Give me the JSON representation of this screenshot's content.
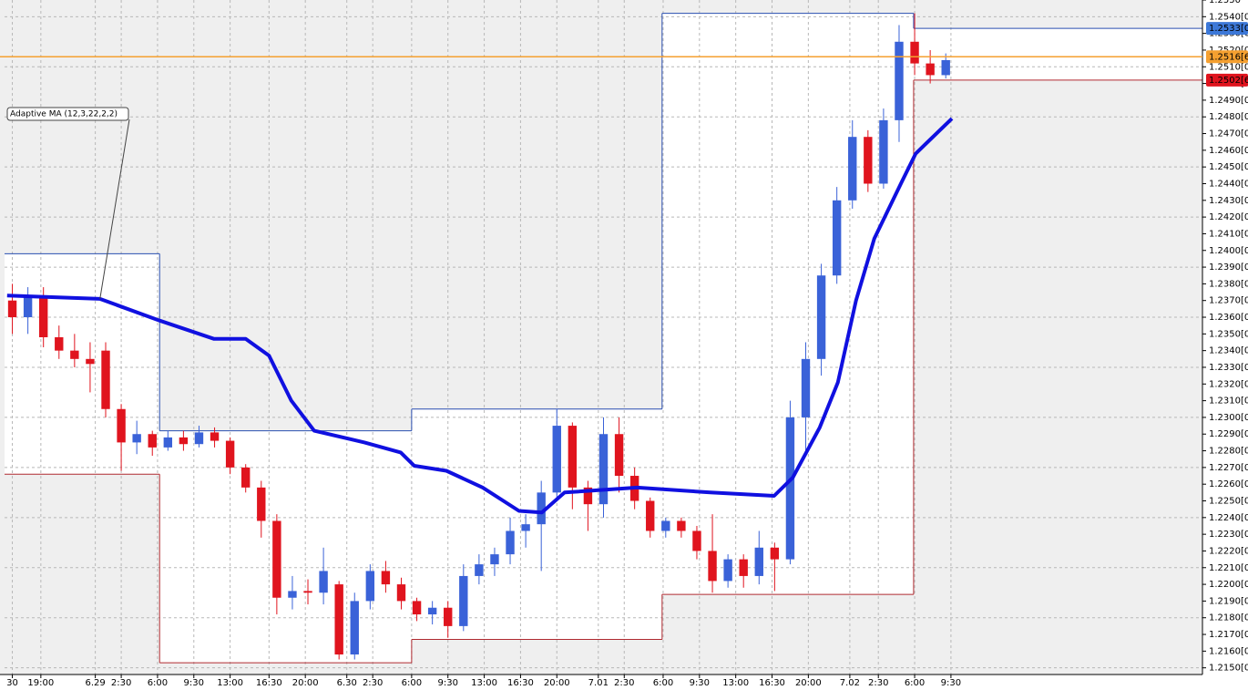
{
  "chart_data": {
    "type": "candlestick",
    "x": [
      1.5,
      4.5,
      7.5,
      10.5,
      13.5,
      16.5,
      19.5,
      22.5,
      25.5,
      28.5,
      31.5,
      34.5,
      37.5,
      40.5,
      43.5,
      46.5,
      49.5,
      52.5,
      55.5,
      58.5,
      61.5,
      64.5,
      67.5,
      70.5,
      73.5,
      76.5,
      79.5,
      82.5,
      85.5,
      88.5,
      91.5,
      94.5,
      97.5,
      100.5,
      103.5,
      106.5,
      109.5,
      112.5,
      115.5,
      118.5,
      121.5,
      124.5,
      127.5,
      130.5,
      133.5,
      136.5,
      139.5,
      142.5,
      145.5,
      148.5,
      151.5,
      154.5,
      157.5,
      160.5,
      163.5,
      166.5,
      169.5,
      172.5,
      175.5,
      178.5,
      181.5
    ],
    "open": [
      1.237,
      1.236,
      1.2372,
      1.2348,
      1.234,
      1.2335,
      1.234,
      1.2305,
      1.2285,
      1.229,
      1.2282,
      1.2288,
      1.2284,
      1.2291,
      1.2286,
      1.227,
      1.2258,
      1.2238,
      1.2192,
      1.2196,
      1.2195,
      1.22,
      1.2158,
      1.219,
      1.2208,
      1.22,
      1.219,
      1.2182,
      1.2186,
      1.2175,
      1.2205,
      1.2212,
      1.2218,
      1.2232,
      1.2236,
      1.2255,
      1.2295,
      1.2258,
      1.2248,
      1.229,
      1.2265,
      1.225,
      1.2232,
      1.2238,
      1.2232,
      1.222,
      1.2202,
      1.2215,
      1.2205,
      1.2222,
      1.2215,
      1.23,
      1.2335,
      1.2385,
      1.243,
      1.2468,
      1.244,
      1.2478,
      1.2525,
      1.2512,
      1.2505
    ],
    "high": [
      1.238,
      1.2378,
      1.2378,
      1.2355,
      1.235,
      1.2345,
      1.2345,
      1.2308,
      1.2298,
      1.2292,
      1.2292,
      1.2292,
      1.2295,
      1.2294,
      1.2288,
      1.2272,
      1.2262,
      1.2242,
      1.2205,
      1.2203,
      1.2222,
      1.2202,
      1.2195,
      1.2212,
      1.2214,
      1.2204,
      1.2192,
      1.219,
      1.219,
      1.2212,
      1.2218,
      1.2222,
      1.224,
      1.2242,
      1.2262,
      1.2305,
      1.2297,
      1.2262,
      1.23,
      1.23,
      1.227,
      1.2252,
      1.224,
      1.224,
      1.2235,
      1.2242,
      1.2218,
      1.2218,
      1.2232,
      1.2225,
      1.231,
      1.2345,
      1.2392,
      1.2438,
      1.2478,
      1.2472,
      1.2485,
      1.2535,
      1.2542,
      1.252,
      1.2518
    ],
    "low": [
      1.235,
      1.235,
      1.2342,
      1.2335,
      1.233,
      1.2315,
      1.23,
      1.2268,
      1.2278,
      1.2277,
      1.228,
      1.228,
      1.2282,
      1.2282,
      1.2266,
      1.2255,
      1.2228,
      1.2182,
      1.2185,
      1.2188,
      1.2188,
      1.2155,
      1.2155,
      1.2185,
      1.2195,
      1.2185,
      1.2178,
      1.2176,
      1.2168,
      1.2172,
      1.22,
      1.2205,
      1.2212,
      1.2222,
      1.2208,
      1.225,
      1.2245,
      1.2232,
      1.224,
      1.2255,
      1.2245,
      1.2228,
      1.2228,
      1.2228,
      1.2215,
      1.2195,
      1.2198,
      1.2198,
      1.22,
      1.2196,
      1.2212,
      1.2278,
      1.2325,
      1.238,
      1.2425,
      1.2435,
      1.2437,
      1.2465,
      1.2505,
      1.25,
      1.2503
    ],
    "close": [
      1.236,
      1.2372,
      1.2348,
      1.234,
      1.2335,
      1.2332,
      1.2305,
      1.2285,
      1.229,
      1.2282,
      1.2288,
      1.2284,
      1.2291,
      1.2286,
      1.227,
      1.2258,
      1.2238,
      1.2192,
      1.2196,
      1.2195,
      1.2208,
      1.2158,
      1.219,
      1.2208,
      1.22,
      1.219,
      1.2182,
      1.2186,
      1.2175,
      1.2205,
      1.2212,
      1.2218,
      1.2232,
      1.2236,
      1.2255,
      1.2295,
      1.2258,
      1.2248,
      1.229,
      1.2265,
      1.225,
      1.2232,
      1.2238,
      1.2232,
      1.222,
      1.2202,
      1.2215,
      1.2205,
      1.2222,
      1.2215,
      1.23,
      1.2335,
      1.2385,
      1.243,
      1.2468,
      1.244,
      1.2478,
      1.2525,
      1.2512,
      1.2505,
      1.2514
    ],
    "up_color": "#3a62d8",
    "down_color": "#e0141e",
    "ma": {
      "name": "Adaptive MA  (12,3,22,2,2)",
      "color": "#1010e0",
      "x": [
        0.5,
        18.4,
        29.9,
        40.4,
        46.5,
        51,
        55.3,
        59.7,
        69.4,
        76.4,
        79,
        85.2,
        92.2,
        99.2,
        103.6,
        108,
        122,
        136.1,
        148.4,
        152,
        157.2,
        160.7,
        164.2,
        167.7,
        173,
        175.7,
        182.7
      ],
      "values": [
        1.2373,
        1.2371,
        1.2358,
        1.2347,
        1.2347,
        1.2337,
        1.231,
        1.2292,
        1.2285,
        1.2279,
        1.2271,
        1.2268,
        1.2258,
        1.2244,
        1.2243,
        1.2255,
        1.2258,
        1.2255,
        1.2253,
        1.2264,
        1.2294,
        1.2321,
        1.237,
        1.2407,
        1.2441,
        1.2458,
        1.2479
      ]
    },
    "range_boxes": [
      {
        "x": [
          0,
          29.9
        ],
        "high": 1.2398,
        "low": 1.2266
      },
      {
        "x": [
          29.9,
          78.5
        ],
        "high": 1.2292,
        "low": 1.2153
      },
      {
        "x": [
          78.5,
          126.8
        ],
        "high": 1.2305,
        "low": 1.2167
      },
      {
        "x": [
          126.8,
          175.3
        ],
        "high": 1.2542,
        "low": 1.2194
      },
      {
        "x": [
          175.3,
          231
        ],
        "high": 1.2533,
        "low": 1.2502
      }
    ],
    "high_color": "#2a4fb0",
    "low_color": "#b02a30",
    "price_markers": [
      {
        "value": 1.2533,
        "label": "1.2533[0",
        "color": "#3c78d8"
      },
      {
        "value": 1.2516,
        "label": "1.2516[6",
        "color": "#f5a030"
      },
      {
        "value": 1.2502,
        "label": "1.2502[6",
        "color": "#e0141e"
      }
    ],
    "xlim": [
      0,
      231
    ],
    "ylim": [
      1.2146,
      1.255
    ],
    "grid": true,
    "xticks": [
      {
        "value": 1.5,
        "label": "30"
      },
      {
        "value": 7,
        "label": "19:00"
      },
      {
        "value": 17.5,
        "label": "6.29"
      },
      {
        "value": 22.5,
        "label": "2:30"
      },
      {
        "value": 29.5,
        "label": "6:00"
      },
      {
        "value": 36.5,
        "label": "9:30"
      },
      {
        "value": 43.5,
        "label": "13:00"
      },
      {
        "value": 51,
        "label": "16:30"
      },
      {
        "value": 58,
        "label": "20:00"
      },
      {
        "value": 66,
        "label": "6.30"
      },
      {
        "value": 71,
        "label": "2:30"
      },
      {
        "value": 78.5,
        "label": "6:00"
      },
      {
        "value": 85.5,
        "label": "9:30"
      },
      {
        "value": 92.5,
        "label": "13:00"
      },
      {
        "value": 99.5,
        "label": "16:30"
      },
      {
        "value": 106.5,
        "label": "20:00"
      },
      {
        "value": 114.5,
        "label": "7.01"
      },
      {
        "value": 119.5,
        "label": "2:30"
      },
      {
        "value": 127,
        "label": "6:00"
      },
      {
        "value": 134,
        "label": "9:30"
      },
      {
        "value": 141,
        "label": "13:00"
      },
      {
        "value": 148,
        "label": "16:30"
      },
      {
        "value": 155,
        "label": "20:00"
      },
      {
        "value": 163,
        "label": "7.02"
      },
      {
        "value": 168.5,
        "label": "2:30"
      },
      {
        "value": 175.5,
        "label": "6:00"
      },
      {
        "value": 182.5,
        "label": "9:30"
      }
    ],
    "yticks": [
      {
        "value": 1.215,
        "label": "1.2150[0"
      },
      {
        "value": 1.216,
        "label": "1.2160[0"
      },
      {
        "value": 1.217,
        "label": "1.2170[0"
      },
      {
        "value": 1.218,
        "label": "1.2180[0"
      },
      {
        "value": 1.219,
        "label": "1.2190[0"
      },
      {
        "value": 1.22,
        "label": "1.2200[0"
      },
      {
        "value": 1.221,
        "label": "1.2210[0"
      },
      {
        "value": 1.222,
        "label": "1.2220[0"
      },
      {
        "value": 1.223,
        "label": "1.2230[0"
      },
      {
        "value": 1.224,
        "label": "1.2240[0"
      },
      {
        "value": 1.225,
        "label": "1.2250[0"
      },
      {
        "value": 1.226,
        "label": "1.2260[0"
      },
      {
        "value": 1.227,
        "label": "1.2270[0"
      },
      {
        "value": 1.228,
        "label": "1.2280[0"
      },
      {
        "value": 1.229,
        "label": "1.2290[0"
      },
      {
        "value": 1.23,
        "label": "1.2300[0"
      },
      {
        "value": 1.231,
        "label": "1.2310[0"
      },
      {
        "value": 1.232,
        "label": "1.2320[0"
      },
      {
        "value": 1.233,
        "label": "1.2330[0"
      },
      {
        "value": 1.234,
        "label": "1.2340[0"
      },
      {
        "value": 1.235,
        "label": "1.2350[0"
      },
      {
        "value": 1.236,
        "label": "1.2360[0"
      },
      {
        "value": 1.237,
        "label": "1.2370[0"
      },
      {
        "value": 1.238,
        "label": "1.2380[0"
      },
      {
        "value": 1.239,
        "label": "1.2390[0"
      },
      {
        "value": 1.24,
        "label": "1.2400[0"
      },
      {
        "value": 1.241,
        "label": "1.2410[0"
      },
      {
        "value": 1.242,
        "label": "1.2420[0"
      },
      {
        "value": 1.243,
        "label": "1.2430[0"
      },
      {
        "value": 1.244,
        "label": "1.2440[0"
      },
      {
        "value": 1.245,
        "label": "1.2450[0"
      },
      {
        "value": 1.246,
        "label": "1.2460[0"
      },
      {
        "value": 1.247,
        "label": "1.2470[0"
      },
      {
        "value": 1.248,
        "label": "1.2480[0"
      },
      {
        "value": 1.249,
        "label": "1.2490[0"
      },
      {
        "value": 1.25,
        "label": "1.2500[0"
      },
      {
        "value": 1.251,
        "label": "1.2510[0"
      },
      {
        "value": 1.252,
        "label": "1.2520[0"
      },
      {
        "value": 1.253,
        "label": "1.2530[0"
      },
      {
        "value": 1.254,
        "label": "1.2540[0"
      },
      {
        "value": 1.255,
        "label": "1.2550"
      }
    ]
  }
}
